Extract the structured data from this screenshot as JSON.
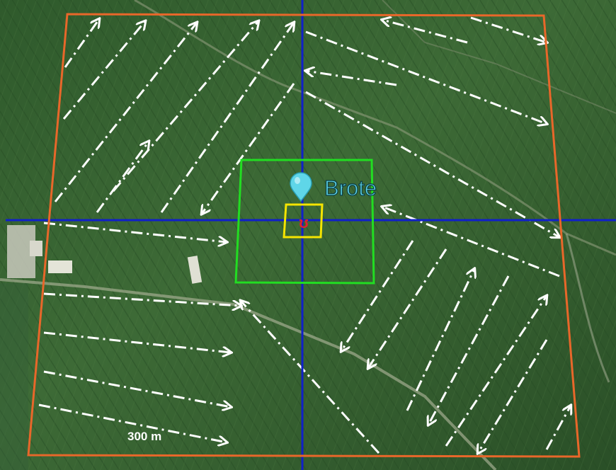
{
  "map": {
    "marker_label": "Brote",
    "marker_icon": "map-pin-icon",
    "target_symbol": "ʊ",
    "scale_label": "300 m",
    "colors": {
      "perimeter": "#e8672a",
      "crosshair": "#1020c8",
      "inner_box": "#22dd22",
      "target_box": "#f5e400",
      "marker": "#5fd6e8",
      "label": "#5fd6e8",
      "target": "#e02030",
      "paths": "#ffffff"
    }
  }
}
